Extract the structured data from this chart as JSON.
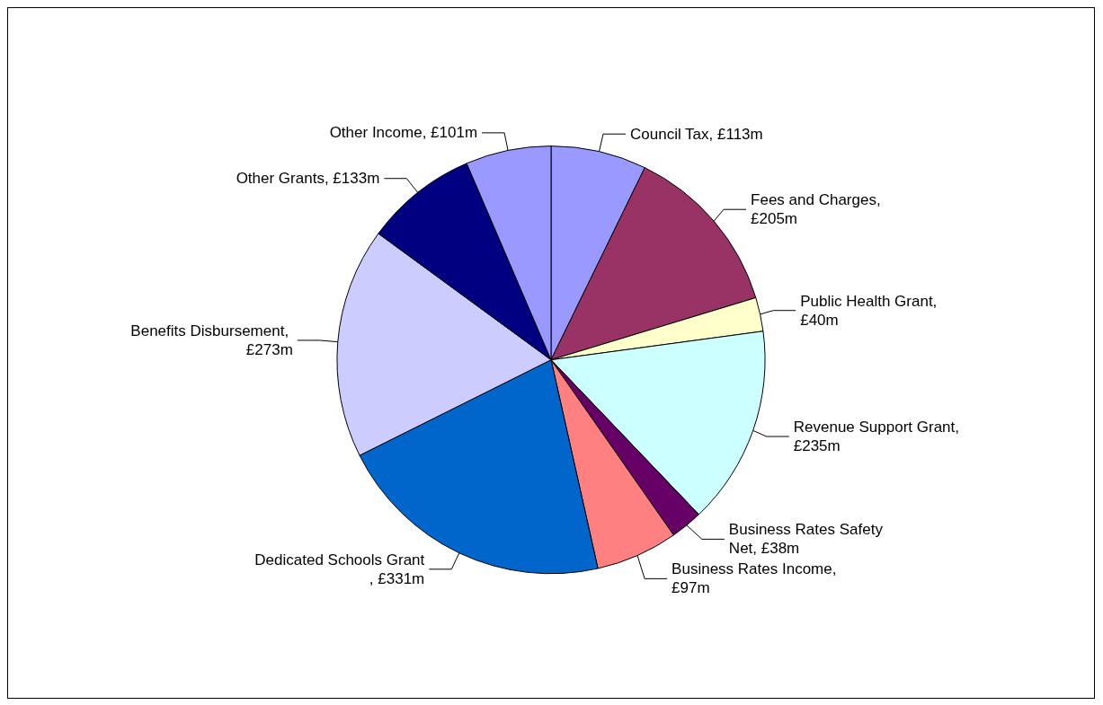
{
  "chart_data": {
    "type": "pie",
    "categories": [
      "Council Tax, £113m",
      "Fees and Charges, £205m",
      "Public Health Grant, £40m",
      "Revenue Support Grant, £235m",
      "Business Rates Safety Net, £38m",
      "Business Rates Income, £97m",
      "Dedicated Schools Grant, £331m",
      "Benefits Disbursement, £273m",
      "Other Grants, £133m",
      "Other Income, £101m"
    ],
    "values": [
      113,
      205,
      40,
      235,
      38,
      97,
      331,
      273,
      133,
      101
    ],
    "colors": [
      "#9999ff",
      "#993366",
      "#ffffcc",
      "#ccffff",
      "#660066",
      "#ff8080",
      "#0066cc",
      "#ccccff",
      "#000080",
      "#9999ff"
    ],
    "legend": false
  }
}
